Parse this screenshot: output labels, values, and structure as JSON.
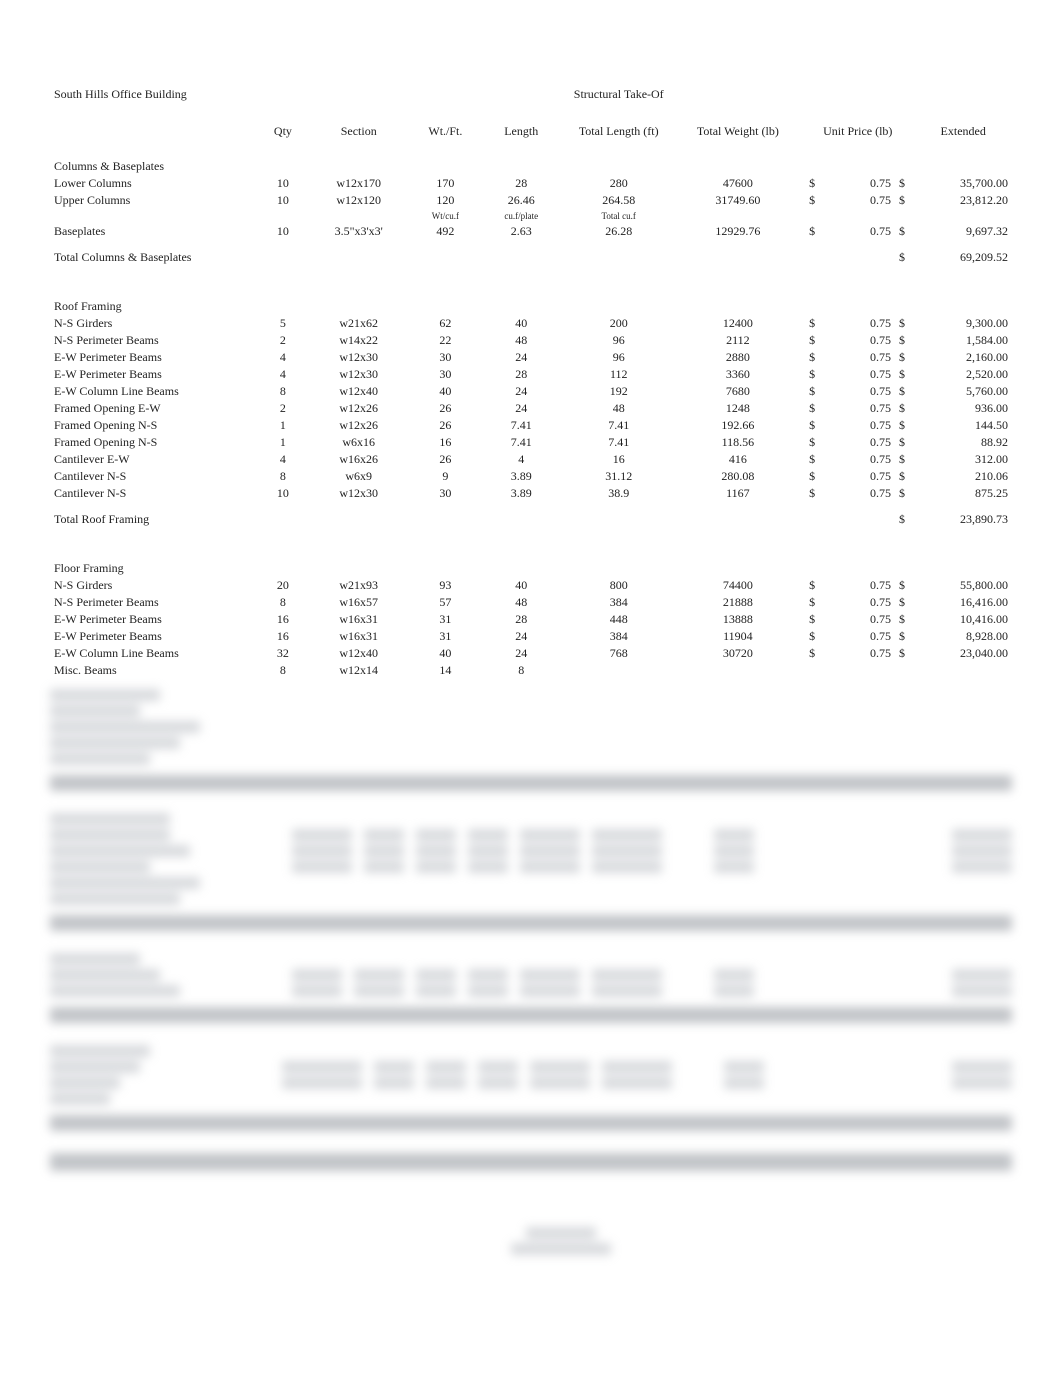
{
  "title_left": "South Hills Office Building",
  "title_center": "Structural Take-Of",
  "headers": {
    "qty": "Qty",
    "section": "Section",
    "wt": "Wt./Ft.",
    "length": "Length",
    "tlen": "Total Length (ft)",
    "twt": "Total Weight (lb)",
    "unit": "Unit Price (lb)",
    "ext": "Extended"
  },
  "groups": [
    {
      "name": "Columns & Baseplates",
      "rows": [
        {
          "desc": "Lower Columns",
          "qty": "10",
          "section": "w12x170",
          "wt": "170",
          "len": "28",
          "tlen": "280",
          "twt": "47600",
          "cur1": "$",
          "up": "0.75",
          "cur2": "$",
          "ext": "35,700.00"
        },
        {
          "desc": "Upper Columns",
          "qty": "10",
          "section": "w12x120",
          "wt": "120",
          "len": "26.46",
          "tlen": "264.58",
          "twt": "31749.60",
          "cur1": "$",
          "up": "0.75",
          "cur2": "$",
          "ext": "23,812.20"
        }
      ],
      "unit_note": {
        "wt": "Wt/cu.f",
        "len": "cu.f/plate",
        "tlen": "Total cu.f"
      },
      "rows2": [
        {
          "desc": "Baseplates",
          "qty": "10",
          "section": "3.5\"x3'x3'",
          "wt": "492",
          "len": "2.63",
          "tlen": "26.28",
          "twt": "12929.76",
          "cur1": "$",
          "up": "0.75",
          "cur2": "$",
          "ext": "9,697.32"
        }
      ],
      "subtotal": {
        "desc": "Total Columns & Baseplates",
        "cur2": "$",
        "ext": "69,209.52"
      }
    },
    {
      "name": "Roof Framing",
      "rows": [
        {
          "desc": "N-S Girders",
          "qty": "5",
          "section": "w21x62",
          "wt": "62",
          "len": "40",
          "tlen": "200",
          "twt": "12400",
          "cur1": "$",
          "up": "0.75",
          "cur2": "$",
          "ext": "9,300.00"
        },
        {
          "desc": "N-S Perimeter Beams",
          "qty": "2",
          "section": "w14x22",
          "wt": "22",
          "len": "48",
          "tlen": "96",
          "twt": "2112",
          "cur1": "$",
          "up": "0.75",
          "cur2": "$",
          "ext": "1,584.00"
        },
        {
          "desc": "E-W Perimeter Beams",
          "qty": "4",
          "section": "w12x30",
          "wt": "30",
          "len": "24",
          "tlen": "96",
          "twt": "2880",
          "cur1": "$",
          "up": "0.75",
          "cur2": "$",
          "ext": "2,160.00"
        },
        {
          "desc": "E-W Perimeter Beams",
          "qty": "4",
          "section": "w12x30",
          "wt": "30",
          "len": "28",
          "tlen": "112",
          "twt": "3360",
          "cur1": "$",
          "up": "0.75",
          "cur2": "$",
          "ext": "2,520.00"
        },
        {
          "desc": "E-W Column Line Beams",
          "qty": "8",
          "section": "w12x40",
          "wt": "40",
          "len": "24",
          "tlen": "192",
          "twt": "7680",
          "cur1": "$",
          "up": "0.75",
          "cur2": "$",
          "ext": "5,760.00"
        },
        {
          "desc": "Framed Opening E-W",
          "qty": "2",
          "section": "w12x26",
          "wt": "26",
          "len": "24",
          "tlen": "48",
          "twt": "1248",
          "cur1": "$",
          "up": "0.75",
          "cur2": "$",
          "ext": "936.00"
        },
        {
          "desc": "Framed Opening N-S",
          "qty": "1",
          "section": "w12x26",
          "wt": "26",
          "len": "7.41",
          "tlen": "7.41",
          "twt": "192.66",
          "cur1": "$",
          "up": "0.75",
          "cur2": "$",
          "ext": "144.50"
        },
        {
          "desc": "Framed Opening N-S",
          "qty": "1",
          "section": "w6x16",
          "wt": "16",
          "len": "7.41",
          "tlen": "7.41",
          "twt": "118.56",
          "cur1": "$",
          "up": "0.75",
          "cur2": "$",
          "ext": "88.92"
        },
        {
          "desc": "Cantilever E-W",
          "qty": "4",
          "section": "w16x26",
          "wt": "26",
          "len": "4",
          "tlen": "16",
          "twt": "416",
          "cur1": "$",
          "up": "0.75",
          "cur2": "$",
          "ext": "312.00"
        },
        {
          "desc": "Cantilever N-S",
          "qty": "8",
          "section": "w6x9",
          "wt": "9",
          "len": "3.89",
          "tlen": "31.12",
          "twt": "280.08",
          "cur1": "$",
          "up": "0.75",
          "cur2": "$",
          "ext": "210.06"
        },
        {
          "desc": "Cantilever N-S",
          "qty": "10",
          "section": "w12x30",
          "wt": "30",
          "len": "3.89",
          "tlen": "38.9",
          "twt": "1167",
          "cur1": "$",
          "up": "0.75",
          "cur2": "$",
          "ext": "875.25"
        }
      ],
      "subtotal": {
        "desc": "Total Roof Framing",
        "cur2": "$",
        "ext": "23,890.73"
      }
    },
    {
      "name": "Floor Framing",
      "rows": [
        {
          "desc": "N-S Girders",
          "qty": "20",
          "section": "w21x93",
          "wt": "93",
          "len": "40",
          "tlen": "800",
          "twt": "74400",
          "cur1": "$",
          "up": "0.75",
          "cur2": "$",
          "ext": "55,800.00"
        },
        {
          "desc": "N-S Perimeter Beams",
          "qty": "8",
          "section": "w16x57",
          "wt": "57",
          "len": "48",
          "tlen": "384",
          "twt": "21888",
          "cur1": "$",
          "up": "0.75",
          "cur2": "$",
          "ext": "16,416.00"
        },
        {
          "desc": "E-W Perimeter Beams",
          "qty": "16",
          "section": "w16x31",
          "wt": "31",
          "len": "28",
          "tlen": "448",
          "twt": "13888",
          "cur1": "$",
          "up": "0.75",
          "cur2": "$",
          "ext": "10,416.00"
        },
        {
          "desc": "E-W Perimeter Beams",
          "qty": "16",
          "section": "w16x31",
          "wt": "31",
          "len": "24",
          "tlen": "384",
          "twt": "11904",
          "cur1": "$",
          "up": "0.75",
          "cur2": "$",
          "ext": "8,928.00"
        },
        {
          "desc": "E-W Column Line Beams",
          "qty": "32",
          "section": "w12x40",
          "wt": "40",
          "len": "24",
          "tlen": "768",
          "twt": "30720",
          "cur1": "$",
          "up": "0.75",
          "cur2": "$",
          "ext": "23,040.00"
        },
        {
          "desc": "Misc. Beams",
          "qty": "8",
          "section": "w12x14",
          "wt": "14",
          "len": "8",
          "tlen": "",
          "twt": "",
          "cur1": "",
          "up": "",
          "cur2": "",
          "ext": ""
        }
      ]
    }
  ],
  "colors": {
    "page_bg": "#ffffff",
    "text": "#222222",
    "blur_fill": "#b7bbc1",
    "blur_band": "#8f949b"
  }
}
